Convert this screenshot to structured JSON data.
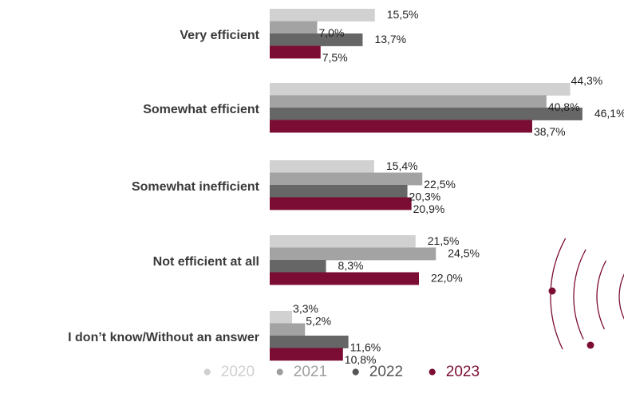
{
  "chart_data": {
    "type": "bar",
    "orientation": "horizontal",
    "categories": [
      "Very efficient",
      "Somewhat efficient",
      "Somewhat inefficient",
      "Not efficient at all",
      "I don’t know/Without an answer"
    ],
    "series": [
      {
        "name": "2020",
        "color": "#d1d1d1",
        "values": [
          15.5,
          44.3,
          15.4,
          21.5,
          3.3
        ],
        "labels": [
          "15,5%",
          "44,3%",
          "15,4%",
          "21,5%",
          "3,3%"
        ]
      },
      {
        "name": "2021",
        "color": "#a3a3a3",
        "values": [
          7.0,
          40.8,
          22.5,
          24.5,
          5.2
        ],
        "labels": [
          "7,0%",
          "40,8%",
          "22,5%",
          "24,5%",
          "5,2%"
        ]
      },
      {
        "name": "2022",
        "color": "#666666",
        "values": [
          13.7,
          46.1,
          20.3,
          8.3,
          11.6
        ],
        "labels": [
          "13,7%",
          "46,1%",
          "20,3%",
          "8,3%",
          "11,6%"
        ]
      },
      {
        "name": "2023",
        "color": "#7b0c34",
        "values": [
          7.5,
          38.7,
          20.9,
          22.0,
          10.8
        ],
        "labels": [
          "7,5%",
          "38,7%",
          "20,9%",
          "22,0%",
          "10,8%"
        ]
      }
    ],
    "xlim": [
      0,
      50
    ],
    "grid": false,
    "legend_position": "bottom"
  },
  "legend": {
    "marker": "●",
    "items": [
      {
        "label": "2020",
        "color": "#cfcfcf"
      },
      {
        "label": "2021",
        "color": "#9e9e9e"
      },
      {
        "label": "2022",
        "color": "#555555"
      },
      {
        "label": "2023",
        "color": "#7b0c34"
      }
    ]
  },
  "decoration": {
    "name": "concentric-arcs-graphic",
    "color": "#7b0c34"
  }
}
